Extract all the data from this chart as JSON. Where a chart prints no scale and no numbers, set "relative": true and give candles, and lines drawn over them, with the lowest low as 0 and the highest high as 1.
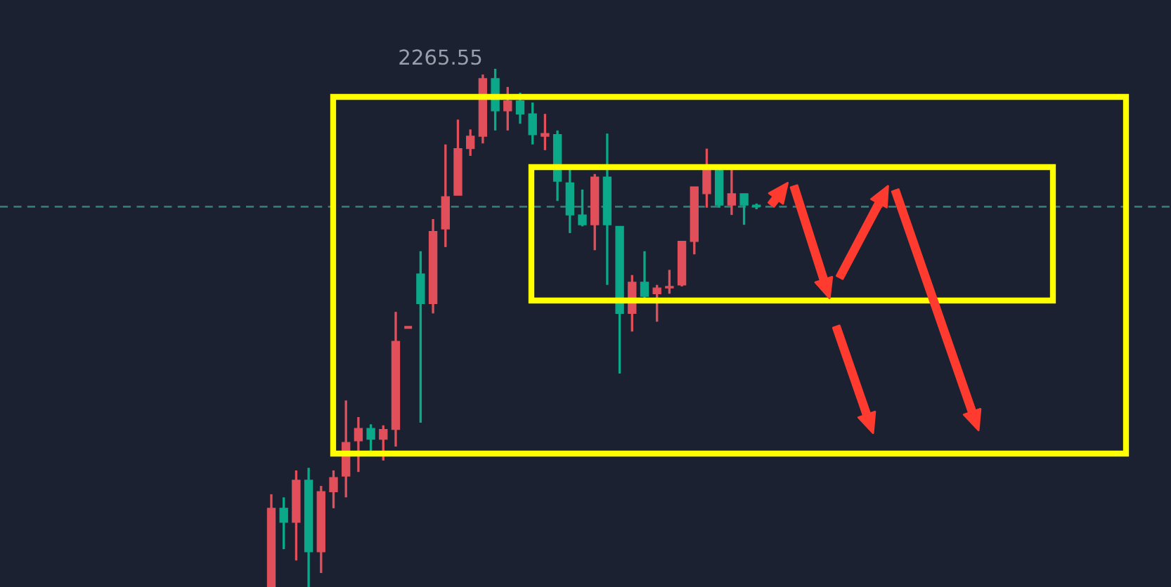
{
  "chart_data": {
    "type": "candlestick",
    "relative": true,
    "categories": [
      null,
      null,
      null,
      null,
      null,
      null,
      null,
      null,
      null,
      null,
      null,
      null,
      null,
      null,
      null,
      null,
      null,
      null,
      null,
      null,
      null,
      null,
      null,
      null,
      null,
      null,
      null,
      null,
      null,
      null,
      null,
      null,
      null,
      null,
      null,
      null,
      null,
      null,
      null,
      null
    ],
    "ohlc": [
      [
        0,
        0.179,
        0,
        0.152
      ],
      [
        0.152,
        0.173,
        0.073,
        0.125
      ],
      [
        0.125,
        0.225,
        0.051,
        0.206
      ],
      [
        0.206,
        0.23,
        0,
        0.068
      ],
      [
        0.068,
        0.195,
        0.027,
        0.184
      ],
      [
        0.184,
        0.225,
        0.152,
        0.211
      ],
      [
        0.214,
        0.36,
        0.173,
        0.279
      ],
      [
        0.282,
        0.328,
        0.222,
        0.306
      ],
      [
        0.306,
        0.314,
        0.257,
        0.285
      ],
      [
        0.285,
        0.312,
        0.244,
        0.304
      ],
      [
        0.304,
        0.531,
        0.271,
        0.474
      ],
      [
        0.501,
        0.501,
        0.501,
        0.501
      ],
      [
        0.604,
        0.648,
        0.317,
        0.547
      ],
      [
        0.547,
        0.71,
        0.528,
        0.686
      ],
      [
        0.691,
        0.854,
        0.656,
        0.753
      ],
      [
        0.756,
        0.902,
        0.756,
        0.846
      ],
      [
        0.846,
        0.883,
        0.832,
        0.87
      ],
      [
        0.87,
        0.989,
        0.856,
        0.981
      ],
      [
        0.981,
        1,
        0.881,
        0.919
      ],
      [
        0.919,
        0.965,
        0.881,
        0.938
      ],
      [
        0.938,
        0.954,
        0.894,
        0.913
      ],
      [
        0.913,
        0.935,
        0.854,
        0.873
      ],
      [
        0.87,
        0.913,
        0.843,
        0.875
      ],
      [
        0.873,
        0.881,
        0.745,
        0.783
      ],
      [
        0.78,
        0.805,
        0.683,
        0.718
      ],
      [
        0.718,
        0.767,
        0.696,
        0.699
      ],
      [
        0.699,
        0.797,
        0.65,
        0.791
      ],
      [
        0.791,
        0.875,
        0.583,
        0.699
      ],
      [
        0.696,
        0.696,
        0.412,
        0.528
      ],
      [
        0.528,
        0.602,
        0.493,
        0.588
      ],
      [
        0.588,
        0.648,
        0.556,
        0.561
      ],
      [
        0.566,
        0.583,
        0.512,
        0.577
      ],
      [
        0.577,
        0.612,
        0.566,
        0.58
      ],
      [
        0.583,
        0.667,
        0.58,
        0.667
      ],
      [
        0.667,
        0.772,
        0.642,
        0.772
      ],
      [
        0.759,
        0.846,
        0.732,
        0.808
      ],
      [
        0.808,
        0.808,
        0.732,
        0.737
      ],
      [
        0.737,
        0.808,
        0.718,
        0.759
      ],
      [
        0.759,
        0.759,
        0.699,
        0.737
      ],
      [
        0.737,
        0.74,
        0.729,
        0.734
      ]
    ],
    "colors": [
      "#e04f5a",
      "#0ba88a",
      "#e04f5a",
      "#0ba88a",
      "#e04f5a",
      "#e04f5a",
      "#e04f5a",
      "#e04f5a",
      "#0ba88a",
      "#e04f5a",
      "#e04f5a",
      "#e04f5a",
      "#0ba88a",
      "#e04f5a",
      "#e04f5a",
      "#e04f5a",
      "#e04f5a",
      "#e04f5a",
      "#0ba88a",
      "#e04f5a",
      "#0ba88a",
      "#0ba88a",
      "#e04f5a",
      "#0ba88a",
      "#0ba88a",
      "#0ba88a",
      "#e04f5a",
      "#0ba88a",
      "#0ba88a",
      "#e04f5a",
      "#0ba88a",
      "#e04f5a",
      "#e04f5a",
      "#e04f5a",
      "#e04f5a",
      "#e04f5a",
      "#0ba88a",
      "#e04f5a",
      "#0ba88a",
      "#0ba88a"
    ],
    "ref_lines": [
      {
        "axis": "y",
        "value": 0.734,
        "color": "#2f7d74",
        "line_style": "dashed"
      }
    ],
    "annotations": [
      "2265.55"
    ]
  }
}
